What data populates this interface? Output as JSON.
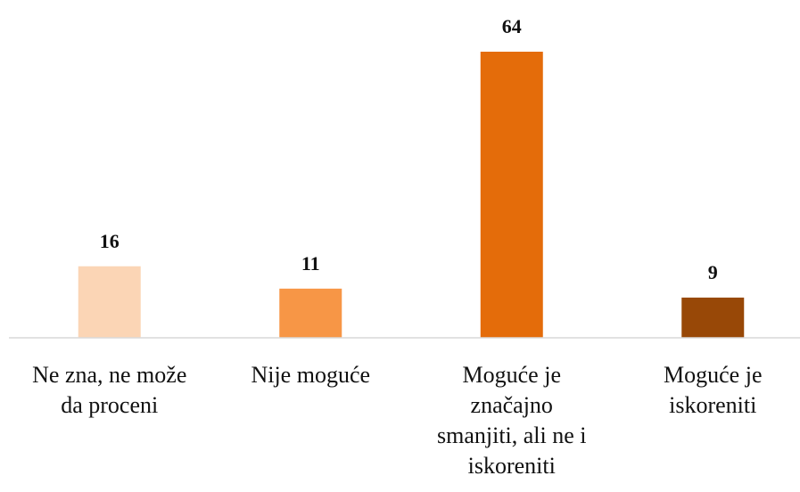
{
  "chart_data": {
    "type": "bar",
    "categories": [
      "Ne zna, ne može da proceni",
      "Nije moguće",
      "Moguće je značajno smanjiti, ali ne i iskoreniti",
      "Moguće je iskoreniti"
    ],
    "values": [
      16,
      11,
      64,
      9
    ],
    "colors": [
      "#fbd5b5",
      "#f79646",
      "#e46c0a",
      "#984807"
    ]
  }
}
